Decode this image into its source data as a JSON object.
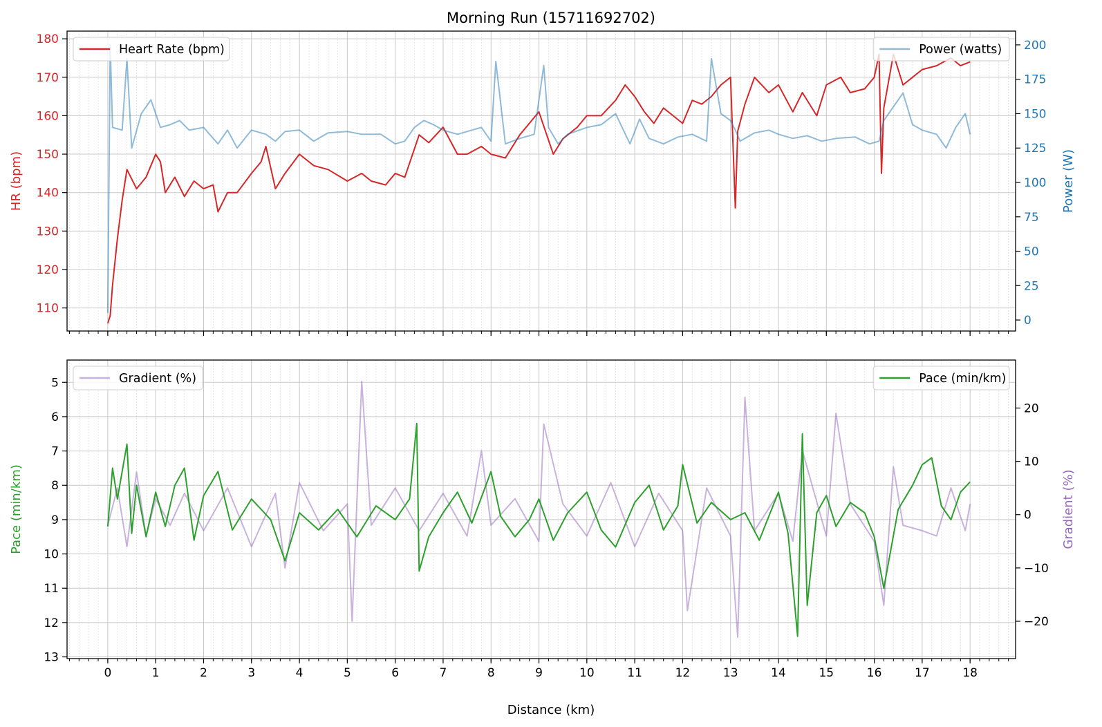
{
  "title": "Morning Run (15711692702)",
  "xlabel": "Distance (km)",
  "colors": {
    "hr": "#d62728",
    "power": "#1f77b4",
    "pace": "#2ca02c",
    "gradient": "#9467bd"
  },
  "chart_data": [
    {
      "type": "line",
      "panel": "top",
      "xlabel": "Distance (km)",
      "xlim": [
        -0.85,
        18.95
      ],
      "x_ticks": [
        0,
        1,
        2,
        3,
        4,
        5,
        6,
        7,
        8,
        9,
        10,
        11,
        12,
        13,
        14,
        15,
        16,
        17,
        18
      ],
      "grid": true,
      "y_left": {
        "label": "HR (bpm)",
        "ylim": [
          104,
          182
        ],
        "ticks": [
          110,
          120,
          130,
          140,
          150,
          160,
          170,
          180
        ]
      },
      "y_right": {
        "label": "Power (W)",
        "ylim": [
          -8,
          210
        ],
        "ticks": [
          0,
          25,
          50,
          75,
          100,
          125,
          150,
          175,
          200
        ]
      },
      "series": [
        {
          "name": "Heart Rate (bpm)",
          "axis": "left",
          "legend": "top-left",
          "x": [
            0,
            0.05,
            0.1,
            0.2,
            0.3,
            0.4,
            0.6,
            0.8,
            1.0,
            1.1,
            1.2,
            1.4,
            1.6,
            1.8,
            2.0,
            2.2,
            2.3,
            2.5,
            2.7,
            3.0,
            3.2,
            3.3,
            3.5,
            3.7,
            4.0,
            4.3,
            4.6,
            5.0,
            5.3,
            5.5,
            5.8,
            6.0,
            6.2,
            6.5,
            6.7,
            7.0,
            7.3,
            7.5,
            7.8,
            8.0,
            8.3,
            8.6,
            9.0,
            9.3,
            9.5,
            9.8,
            10.0,
            10.3,
            10.6,
            10.8,
            11.0,
            11.2,
            11.4,
            11.6,
            11.8,
            12.0,
            12.2,
            12.4,
            12.6,
            12.8,
            13.0,
            13.1,
            13.15,
            13.3,
            13.5,
            13.8,
            14.0,
            14.3,
            14.5,
            14.8,
            15.0,
            15.3,
            15.5,
            15.8,
            16.0,
            16.1,
            16.15,
            16.2,
            16.4,
            16.6,
            16.8,
            17.0,
            17.3,
            17.6,
            17.8,
            18.0
          ],
          "y": [
            106,
            108,
            116,
            128,
            138,
            146,
            141,
            144,
            150,
            148,
            140,
            144,
            139,
            143,
            141,
            142,
            135,
            140,
            140,
            145,
            148,
            152,
            141,
            145,
            150,
            147,
            146,
            143,
            145,
            143,
            142,
            145,
            144,
            155,
            153,
            157,
            150,
            150,
            152,
            150,
            149,
            155,
            161,
            150,
            154,
            157,
            160,
            160,
            164,
            168,
            165,
            161,
            158,
            162,
            160,
            158,
            164,
            163,
            165,
            168,
            170,
            136,
            156,
            163,
            170,
            166,
            168,
            161,
            166,
            160,
            168,
            170,
            166,
            167,
            170,
            176,
            145,
            162,
            176,
            168,
            170,
            172,
            173,
            175,
            173,
            174
          ]
        },
        {
          "name": "Power (watts)",
          "axis": "right",
          "legend": "top-right",
          "x": [
            0,
            0.05,
            0.1,
            0.3,
            0.4,
            0.5,
            0.7,
            0.9,
            1.1,
            1.3,
            1.5,
            1.7,
            2.0,
            2.3,
            2.5,
            2.7,
            3.0,
            3.3,
            3.5,
            3.7,
            4.0,
            4.3,
            4.6,
            5.0,
            5.3,
            5.7,
            6.0,
            6.2,
            6.4,
            6.6,
            6.8,
            7.0,
            7.3,
            7.6,
            7.8,
            8.0,
            8.1,
            8.3,
            8.6,
            8.9,
            9.1,
            9.2,
            9.4,
            9.6,
            10.0,
            10.3,
            10.6,
            10.9,
            11.1,
            11.3,
            11.6,
            11.9,
            12.2,
            12.5,
            12.6,
            12.8,
            13.0,
            13.1,
            13.2,
            13.5,
            13.8,
            14.0,
            14.3,
            14.6,
            14.9,
            15.2,
            15.6,
            15.9,
            16.1,
            16.2,
            16.4,
            16.6,
            16.8,
            17.0,
            17.3,
            17.5,
            17.7,
            17.9,
            18.0
          ],
          "y": [
            5,
            200,
            140,
            138,
            190,
            125,
            150,
            160,
            140,
            142,
            145,
            138,
            140,
            128,
            138,
            125,
            138,
            135,
            130,
            137,
            138,
            130,
            136,
            137,
            135,
            135,
            128,
            130,
            140,
            145,
            142,
            138,
            135,
            138,
            140,
            130,
            188,
            128,
            132,
            135,
            185,
            140,
            128,
            135,
            140,
            142,
            150,
            128,
            146,
            132,
            128,
            133,
            135,
            130,
            190,
            150,
            145,
            138,
            130,
            136,
            138,
            135,
            132,
            134,
            130,
            132,
            133,
            128,
            130,
            145,
            155,
            165,
            142,
            138,
            135,
            125,
            140,
            150,
            135
          ]
        }
      ]
    },
    {
      "type": "line",
      "panel": "bottom",
      "xlabel": "Distance (km)",
      "xlim": [
        -0.85,
        18.95
      ],
      "x_ticks": [
        0,
        1,
        2,
        3,
        4,
        5,
        6,
        7,
        8,
        9,
        10,
        11,
        12,
        13,
        14,
        15,
        16,
        17,
        18
      ],
      "grid": true,
      "y_left": {
        "label": "Pace (min/km)",
        "ylim": [
          13.05,
          4.35
        ],
        "inverted": true,
        "ticks": [
          5,
          6,
          7,
          8,
          9,
          10,
          11,
          12,
          13
        ]
      },
      "y_right": {
        "label": "Gradient (%)",
        "ylim": [
          -27,
          29
        ],
        "ticks": [
          -20,
          -10,
          0,
          10,
          20
        ]
      },
      "series": [
        {
          "name": "Gradient (%)",
          "axis": "right",
          "legend": "top-left",
          "x": [
            0,
            0.2,
            0.4,
            0.6,
            0.8,
            1.0,
            1.3,
            1.6,
            2.0,
            2.5,
            3.0,
            3.5,
            3.7,
            4.0,
            4.5,
            5.0,
            5.1,
            5.3,
            5.5,
            6.0,
            6.5,
            7.0,
            7.5,
            7.8,
            8.0,
            8.5,
            9.0,
            9.1,
            9.5,
            10.0,
            10.5,
            11.0,
            11.5,
            12.0,
            12.1,
            12.5,
            13.0,
            13.15,
            13.3,
            13.5,
            14.0,
            14.3,
            14.5,
            15.0,
            15.2,
            15.5,
            16.0,
            16.2,
            16.4,
            16.6,
            17.0,
            17.3,
            17.6,
            17.9,
            18.0
          ],
          "y": [
            -2,
            5,
            -6,
            8,
            -4,
            3,
            -2,
            4,
            -3,
            5,
            -6,
            4,
            -10,
            6,
            -3,
            2,
            -20,
            25,
            -2,
            5,
            -3,
            4,
            -4,
            12,
            -2,
            3,
            -5,
            17,
            2,
            -4,
            6,
            -6,
            4,
            -3,
            -18,
            5,
            -4,
            -23,
            22,
            -3,
            4,
            -5,
            12,
            -4,
            19,
            2,
            -5,
            -17,
            9,
            -2,
            -3,
            -4,
            5,
            -3,
            2
          ]
        },
        {
          "name": "Pace (min/km)",
          "axis": "left",
          "legend": "top-right",
          "x": [
            0,
            0.1,
            0.2,
            0.4,
            0.5,
            0.6,
            0.8,
            1.0,
            1.2,
            1.4,
            1.6,
            1.8,
            2.0,
            2.3,
            2.6,
            3.0,
            3.4,
            3.7,
            4.0,
            4.4,
            4.8,
            5.2,
            5.6,
            6.0,
            6.3,
            6.45,
            6.5,
            6.7,
            7.0,
            7.3,
            7.6,
            8.0,
            8.2,
            8.5,
            8.8,
            9.0,
            9.3,
            9.6,
            10.0,
            10.3,
            10.6,
            11.0,
            11.3,
            11.6,
            11.9,
            12.0,
            12.3,
            12.6,
            13.0,
            13.3,
            13.6,
            14.0,
            14.2,
            14.4,
            14.5,
            14.6,
            14.8,
            15.0,
            15.2,
            15.5,
            15.8,
            16.0,
            16.2,
            16.5,
            16.8,
            17.0,
            17.2,
            17.4,
            17.6,
            17.8,
            18.0
          ],
          "y": [
            9.2,
            7.5,
            8.4,
            6.8,
            9.4,
            8.0,
            9.5,
            8.2,
            9.2,
            8.0,
            7.5,
            9.6,
            8.3,
            7.6,
            9.3,
            8.4,
            9.0,
            10.2,
            8.8,
            9.3,
            8.7,
            9.5,
            8.6,
            9.0,
            8.4,
            6.2,
            10.5,
            9.5,
            8.8,
            8.2,
            9.1,
            7.6,
            8.9,
            9.5,
            9.0,
            8.4,
            9.6,
            8.8,
            8.2,
            9.3,
            9.8,
            8.5,
            8.0,
            9.3,
            8.6,
            7.4,
            9.1,
            8.5,
            9.0,
            8.8,
            9.6,
            8.2,
            9.4,
            12.4,
            6.5,
            11.5,
            8.8,
            8.3,
            9.2,
            8.5,
            8.8,
            9.5,
            11.0,
            8.7,
            8.0,
            7.4,
            7.2,
            8.6,
            9.0,
            8.2,
            7.9
          ]
        }
      ]
    }
  ]
}
